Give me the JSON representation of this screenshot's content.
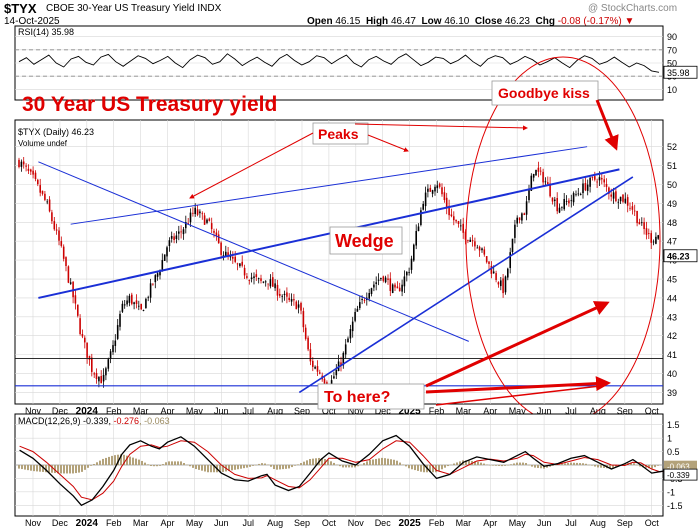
{
  "header": {
    "symbol": "$TYX",
    "name": "CBOE 30-Year US Treasury Yield INDX",
    "date": "14-Oct-2025",
    "watermark": "@ StockCharts.com",
    "open_label": "Open",
    "open": "46.15",
    "high_label": "High",
    "high": "46.47",
    "low_label": "Low",
    "low": "46.10",
    "close_label": "Close",
    "close": "46.23",
    "chg_label": "Chg",
    "chg": "-0.08 (-0.17%)"
  },
  "colors": {
    "price_up": "#000000",
    "price_down": "#cc0000",
    "annotation_red": "#e00000",
    "trendline_blue": "#1a2fd6",
    "rsi_line": "#000000",
    "macd_line": "#000000",
    "signal_line": "#cc0000",
    "histogram": "#b3a27a",
    "gridline": "#d8d8d8"
  },
  "chart_data": [
    {
      "type": "line",
      "panel": "RSI",
      "label": "RSI(14) 35.98",
      "last_value": 35.98,
      "ylim": [
        0,
        100
      ],
      "y_ticks": [
        10,
        30,
        50,
        70,
        90
      ],
      "reference_lines": [
        30,
        70
      ],
      "values": [
        52,
        58,
        48,
        55,
        62,
        50,
        44,
        56,
        60,
        51,
        47,
        59,
        63,
        52,
        45,
        53,
        61,
        57,
        49,
        54,
        60,
        50,
        43,
        55,
        62,
        58,
        48,
        52,
        64,
        56,
        46,
        53,
        59,
        51,
        45,
        57,
        63,
        54,
        47,
        52,
        61,
        58,
        49,
        56,
        62,
        50,
        44,
        55,
        60,
        53,
        48,
        58,
        64,
        55,
        46,
        51,
        59,
        57,
        49,
        54,
        62,
        52,
        45,
        56,
        61,
        58,
        48,
        53,
        60,
        55,
        47,
        52,
        58,
        50,
        43,
        54,
        61,
        57,
        48,
        52,
        59,
        51,
        44,
        50,
        46,
        38,
        35.98
      ]
    },
    {
      "type": "candlestick",
      "panel": "price",
      "label": "$TYX (Daily) 46.23",
      "sublabel": "Volume undef",
      "last_value": 46.23,
      "ylim": [
        38.6,
        53.2
      ],
      "y_ticks": [
        39,
        40,
        41,
        42,
        43,
        44,
        45,
        46,
        47,
        48,
        49,
        50,
        51,
        52
      ],
      "x_labels": [
        "Nov",
        "Dec",
        "2024",
        "Feb",
        "Mar",
        "Apr",
        "May",
        "Jun",
        "Jul",
        "Aug",
        "Sep",
        "Oct",
        "Nov",
        "Dec",
        "2025",
        "Feb",
        "Mar",
        "Apr",
        "May",
        "Jun",
        "Jul",
        "Aug",
        "Sep",
        "Oct"
      ],
      "month_index": [
        0,
        1,
        2,
        3,
        4,
        5,
        6,
        7,
        8,
        9,
        10,
        11,
        12,
        13,
        14,
        15,
        16,
        17,
        18,
        19,
        20,
        21,
        22,
        23
      ],
      "series_months": [
        -0.5,
        0,
        0.5,
        1.0,
        1.5,
        1.8,
        2.2,
        2.6,
        3.0,
        3.3,
        3.6,
        4.0,
        4.4,
        4.7,
        5.0,
        5.5,
        6.0,
        6.5,
        7.0,
        7.5,
        8.0,
        8.5,
        8.7,
        9.0,
        9.5,
        9.9,
        10.3,
        10.7,
        11.0,
        11.5,
        12.0,
        12.5,
        13.0,
        13.5,
        14.0,
        14.5,
        15.0,
        15.5,
        16.0,
        16.5,
        17.0,
        17.5,
        18.0,
        18.3,
        18.6,
        19.0,
        19.5,
        20.0,
        20.5,
        21.0,
        21.5,
        22.0,
        22.3,
        22.6,
        23.0,
        23.3,
        23.6,
        23.8
      ],
      "series_closes": [
        51.2,
        50.3,
        49.0,
        46.8,
        44.0,
        42.0,
        40.2,
        39.6,
        41.5,
        43.5,
        44.0,
        43.2,
        44.6,
        45.5,
        46.8,
        47.5,
        48.6,
        48.0,
        46.5,
        45.8,
        45.2,
        44.8,
        45.0,
        44.5,
        43.8,
        43.6,
        40.6,
        40.0,
        39.3,
        40.8,
        43.2,
        44.5,
        45.2,
        44.2,
        45.6,
        49.2,
        50.2,
        48.4,
        47.4,
        46.9,
        45.6,
        44.4,
        48.3,
        48.6,
        50.8,
        50.3,
        48.8,
        49.2,
        49.9,
        50.4,
        49.5,
        49.2,
        48.7,
        47.8,
        47.1,
        47.4,
        46.8,
        46.23
      ],
      "annotations": [
        {
          "text": "30 Year US Treasury yield"
        },
        {
          "text": "Peaks"
        },
        {
          "text": "Wedge"
        },
        {
          "text": "Goodbye kiss"
        },
        {
          "text": "To here?"
        }
      ]
    },
    {
      "type": "line",
      "panel": "MACD",
      "label": "MACD(12,26,9)",
      "macd_value": "-0.339",
      "signal_value": "-0.276",
      "hist_value": "-0.063",
      "ylim": [
        -1.75,
        1.75
      ],
      "y_ticks": [
        1.5,
        1.0,
        0.5,
        -0.5,
        -1.0,
        -1.5
      ],
      "series": [
        {
          "name": "MACD",
          "values": [
            0.55,
            0.25,
            -0.2,
            -0.7,
            -1.15,
            -1.5,
            -1.3,
            -0.8,
            -0.2,
            0.4,
            0.75,
            0.9,
            0.7,
            0.6,
            0.85,
            1.05,
            0.7,
            0.2,
            -0.3,
            -0.55,
            -0.6,
            -0.4,
            -0.35,
            -0.75,
            -0.95,
            -0.8,
            -0.3,
            0.2,
            0.45,
            0.15,
            0.0,
            0.4,
            0.9,
            1.1,
            0.7,
            0.05,
            -0.5,
            -0.35,
            0.1,
            0.3,
            0.2,
            0.1,
            0.35,
            0.5,
            0.25,
            -0.05,
            0.05,
            0.25,
            0.35,
            0.1,
            -0.15,
            0.05,
            0.2,
            0.0,
            -0.3,
            -0.25,
            -0.2,
            -0.34
          ]
        },
        {
          "name": "Signal",
          "values": [
            0.7,
            0.5,
            0.1,
            -0.35,
            -0.8,
            -1.2,
            -1.3,
            -1.05,
            -0.6,
            -0.05,
            0.4,
            0.7,
            0.75,
            0.65,
            0.7,
            0.9,
            0.85,
            0.5,
            0.0,
            -0.35,
            -0.5,
            -0.48,
            -0.4,
            -0.55,
            -0.8,
            -0.85,
            -0.55,
            -0.1,
            0.25,
            0.25,
            0.1,
            0.2,
            0.6,
            0.9,
            0.85,
            0.35,
            -0.2,
            -0.35,
            -0.1,
            0.15,
            0.22,
            0.15,
            0.25,
            0.4,
            0.35,
            0.1,
            0.02,
            0.15,
            0.28,
            0.2,
            0.0,
            -0.02,
            0.1,
            0.08,
            -0.15,
            -0.25,
            -0.22,
            -0.28
          ]
        }
      ]
    }
  ]
}
